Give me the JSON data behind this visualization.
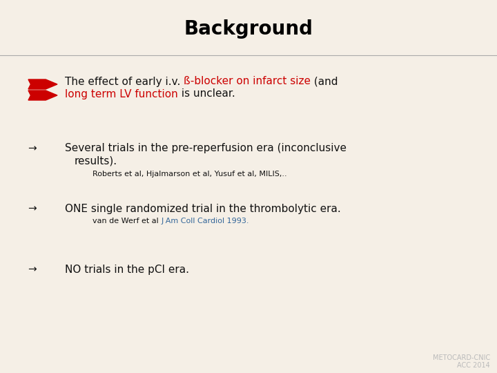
{
  "background_color": "#f5efe6",
  "title": "Background",
  "title_fontsize": 20,
  "title_color": "#000000",
  "header_line_color": "#aaaaaa",
  "bullet_arrow_color": "#cc0000",
  "text_color_black": "#111111",
  "text_color_red": "#cc0000",
  "text_color_blue": "#336699",
  "arrow_color": "#111111",
  "line1_normal_1": "The effect of early i.v. ",
  "line1_red": "ß-blocker on infarct size",
  "line1_normal_2": " (and",
  "line2_red": "long term LV function",
  "line2_normal": " is unclear.",
  "bullet1_text": "Several trials in the pre-reperfusion era (inconclusive",
  "bullet1_text2": "results).",
  "bullet1_sub": "Roberts et al, Hjalmarson et al, Yusuf et al, MILIS,..",
  "bullet2_text": "ONE single randomized trial in the thrombolytic era.",
  "bullet2_sub_normal": "van de Werf et al ",
  "bullet2_sub_blue": "J Am Coll Cardiol 1993.",
  "bullet3_text": "NO trials in the pCI era.",
  "footer_left": "METOCARD-CNIC",
  "footer_right": "ACC 2014",
  "footer_color": "#bbbbbb",
  "footer_fontsize": 7,
  "fontsize_main": 11,
  "fontsize_sub": 8
}
